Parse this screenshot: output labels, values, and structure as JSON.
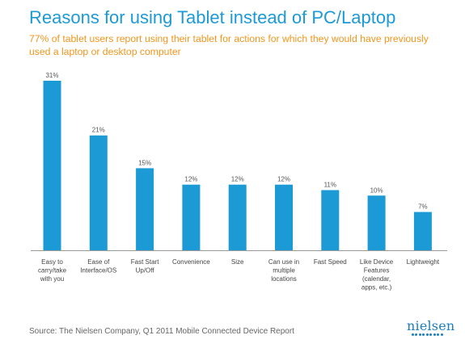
{
  "header": {
    "title": "Reasons for using Tablet instead of PC/Laptop",
    "subtitle": "77% of tablet users report using their tablet for actions for which they would have previously used a laptop or desktop computer"
  },
  "footer": {
    "source": "Source: The Nielsen Company, Q1 2011 Mobile Connected Device Report",
    "logo_text": "nielsen"
  },
  "colors": {
    "bar": "#1c9ad6",
    "title": "#1c9ad6",
    "subtitle": "#f0961e",
    "axis": "#999999",
    "logo": "#1c7fbf"
  },
  "chart_data": {
    "type": "bar",
    "title": "Reasons for using Tablet instead of PC/Laptop",
    "subtitle": "77% of tablet users report using their tablet for actions for which they would have previously used a laptop or desktop computer",
    "categories": [
      [
        "Easy to",
        "carry/take",
        "with you"
      ],
      [
        "Ease of",
        "Interface/OS"
      ],
      [
        "Fast Start",
        "Up/Off"
      ],
      [
        "Convenience"
      ],
      [
        "Size"
      ],
      [
        "Can use in",
        "multiple",
        "locations"
      ],
      [
        "Fast Speed"
      ],
      [
        "Like Device",
        "Features",
        "(calendar,",
        "apps, etc.)"
      ],
      [
        "Lightweight"
      ]
    ],
    "values": [
      31,
      21,
      15,
      12,
      12,
      12,
      11,
      10,
      7
    ],
    "value_labels": [
      "31%",
      "21%",
      "15%",
      "12%",
      "12%",
      "12%",
      "11%",
      "10%",
      "7%"
    ],
    "units": "%",
    "ylim": [
      0,
      31
    ],
    "grid": false,
    "legend": "none"
  }
}
